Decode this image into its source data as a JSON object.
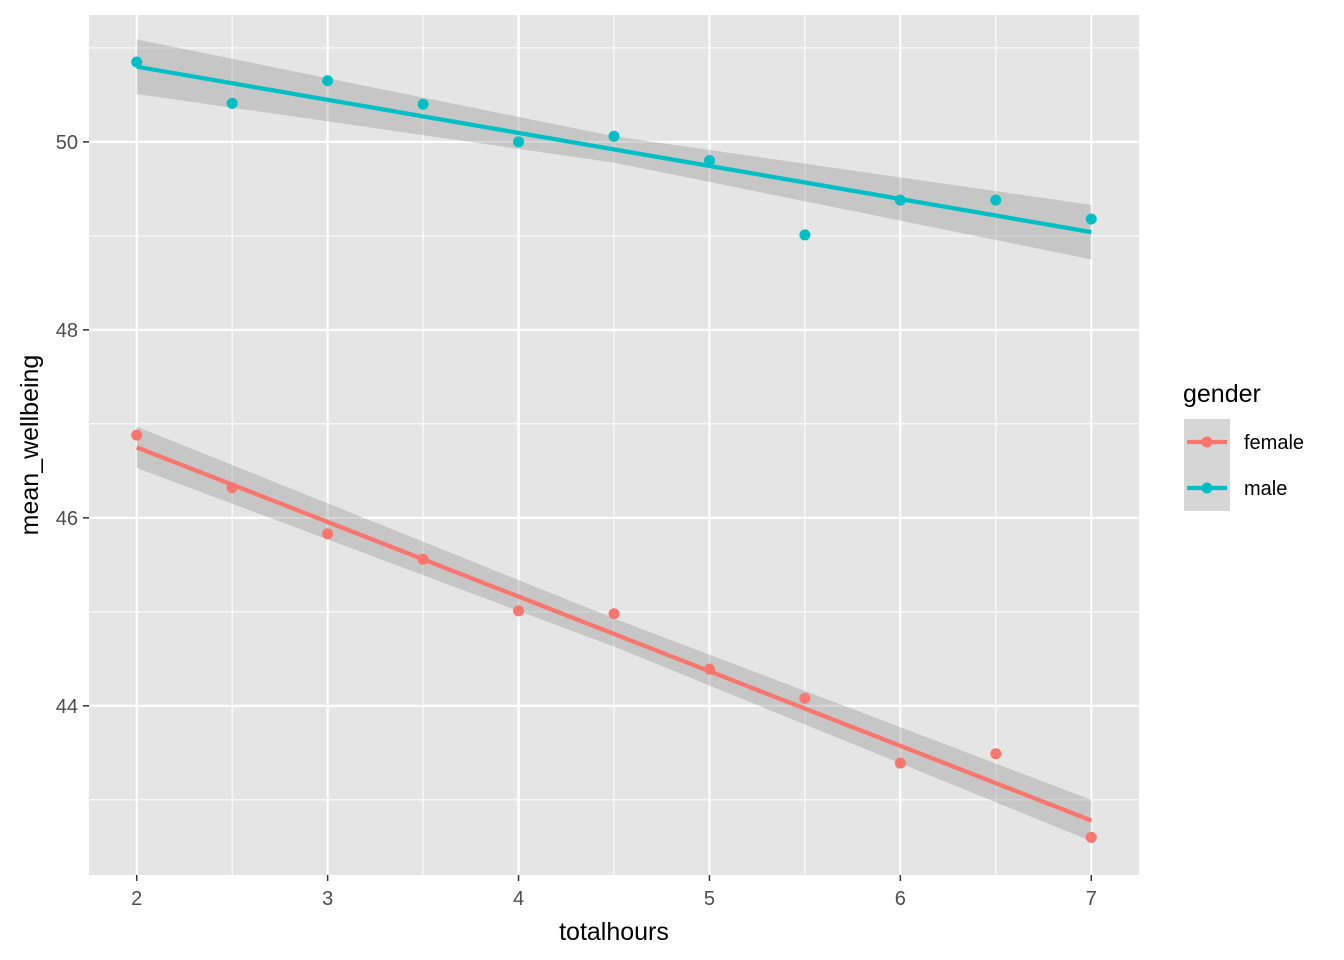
{
  "chart_data": {
    "type": "scatter",
    "xlabel": "totalhours",
    "ylabel": "mean_wellbeing",
    "xlim": [
      1.75,
      7.25
    ],
    "ylim": [
      42.2,
      51.35
    ],
    "x_ticks": [
      2,
      3,
      4,
      5,
      6,
      7
    ],
    "x_minor_ticks": [
      2.5,
      3.5,
      4.5,
      5.5,
      6.5
    ],
    "y_ticks": [
      44,
      46,
      48,
      50
    ],
    "y_minor_ticks": [
      43,
      45,
      47,
      49,
      51
    ],
    "grid": true,
    "legend": {
      "title": "gender",
      "position": "right"
    },
    "colors": {
      "panel_background": "#e5e5e5",
      "grid": "#ffffff",
      "ribbon": "#999999"
    },
    "series": [
      {
        "name": "female",
        "color": "#f8766d",
        "x": [
          2,
          2.5,
          3,
          3.5,
          4,
          4.5,
          5,
          5.5,
          6,
          6.5,
          7
        ],
        "y": [
          46.88,
          46.32,
          45.83,
          45.56,
          45.01,
          44.98,
          44.39,
          44.08,
          43.39,
          43.49,
          42.6
        ],
        "fit": {
          "x": [
            2,
            7
          ],
          "y": [
            46.75,
            42.78
          ]
        },
        "band_lower": {
          "x": [
            2,
            4.5,
            7
          ],
          "y": [
            46.53,
            44.63,
            42.56
          ]
        },
        "band_upper": {
          "x": [
            2,
            4.5,
            7
          ],
          "y": [
            46.97,
            44.93,
            43.0
          ]
        }
      },
      {
        "name": "male",
        "color": "#00bfc4",
        "x": [
          2,
          2.5,
          3,
          3.5,
          4,
          4.5,
          5,
          5.5,
          6,
          6.5,
          7
        ],
        "y": [
          50.85,
          50.41,
          50.65,
          50.4,
          50.0,
          50.06,
          49.8,
          49.01,
          49.38,
          49.38,
          49.18
        ],
        "fit": {
          "x": [
            2,
            7
          ],
          "y": [
            50.8,
            49.04
          ]
        },
        "band_lower": {
          "x": [
            2,
            4.5,
            7
          ],
          "y": [
            50.51,
            49.78,
            48.75
          ]
        },
        "band_upper": {
          "x": [
            2,
            4.5,
            7
          ],
          "y": [
            51.09,
            50.06,
            49.33
          ]
        }
      }
    ]
  }
}
